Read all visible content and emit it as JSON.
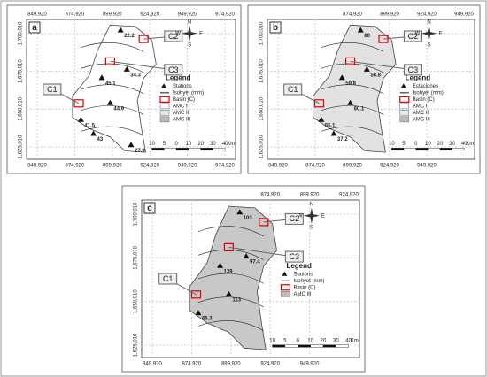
{
  "compass": [
    "N",
    "W",
    "E",
    "S"
  ],
  "panels": [
    {
      "label": "a",
      "top_coords": [
        "849,920",
        "874,920",
        "899,920",
        "924,920",
        "949,920",
        "974,920"
      ],
      "bottom_coords": [
        "849,920",
        "874,920",
        "899,920",
        "924,920",
        "949,920",
        "974,920"
      ],
      "left_coords": [
        "1,700,010",
        "1,675,010",
        "1,650,010",
        "1,625,010"
      ],
      "legend_title": "Legend",
      "legend_items": [
        "Stations",
        "Isohyet (mm)",
        "Basin (C)",
        "AMC I",
        "AMC II",
        "AMC III"
      ],
      "callouts": [
        "C1",
        "C2",
        "C3"
      ],
      "scale": [
        10,
        5,
        0,
        10,
        20,
        30,
        40
      ],
      "scale_unit": "Km",
      "stations": [
        22.2,
        45.1,
        34.3,
        44.9,
        41.5,
        43,
        27.9
      ]
    },
    {
      "label": "b",
      "top_coords": [
        "874,920",
        "899,920",
        "924,920",
        "949,920"
      ],
      "bottom_coords": [
        "849,920",
        "874,920",
        "899,920",
        "924,920",
        "949,920"
      ],
      "left_coords": [
        "1,700,010",
        "1,675,010",
        "1,650,010",
        "1,625,010"
      ],
      "legend_title": "Legend",
      "legend_items": [
        "Estaciones",
        "Isohyet (mm)",
        "Basin (C)",
        "AMC I",
        "AMC II",
        "AMC III"
      ],
      "callouts": [
        "C1",
        "C2",
        "C3"
      ],
      "scale": [
        10,
        5,
        0,
        10,
        20,
        30,
        40
      ],
      "scale_unit": "Km",
      "stations": [
        80,
        59.8,
        58.8,
        60.1,
        55.1,
        37.2
      ]
    },
    {
      "label": "c",
      "top_coords": [
        "874,920",
        "899,920",
        "924,920"
      ],
      "bottom_coords": [
        "849,920",
        "874,920",
        "899,920",
        "924,920",
        "949,920"
      ],
      "left_coords": [
        "1,700,010",
        "1,675,010",
        "1,650,010",
        "1,625,010"
      ],
      "legend_title": "Legend",
      "legend_items": [
        "Stations",
        "Isohyet (mm)",
        "Basin (C)",
        "AMC III"
      ],
      "callouts": [
        "C1",
        "C2",
        "C3"
      ],
      "scale": [
        10,
        5,
        0,
        10,
        20,
        30,
        40
      ],
      "scale_unit": "Km",
      "stations": [
        103,
        139,
        97.4,
        113,
        66.3
      ]
    }
  ]
}
